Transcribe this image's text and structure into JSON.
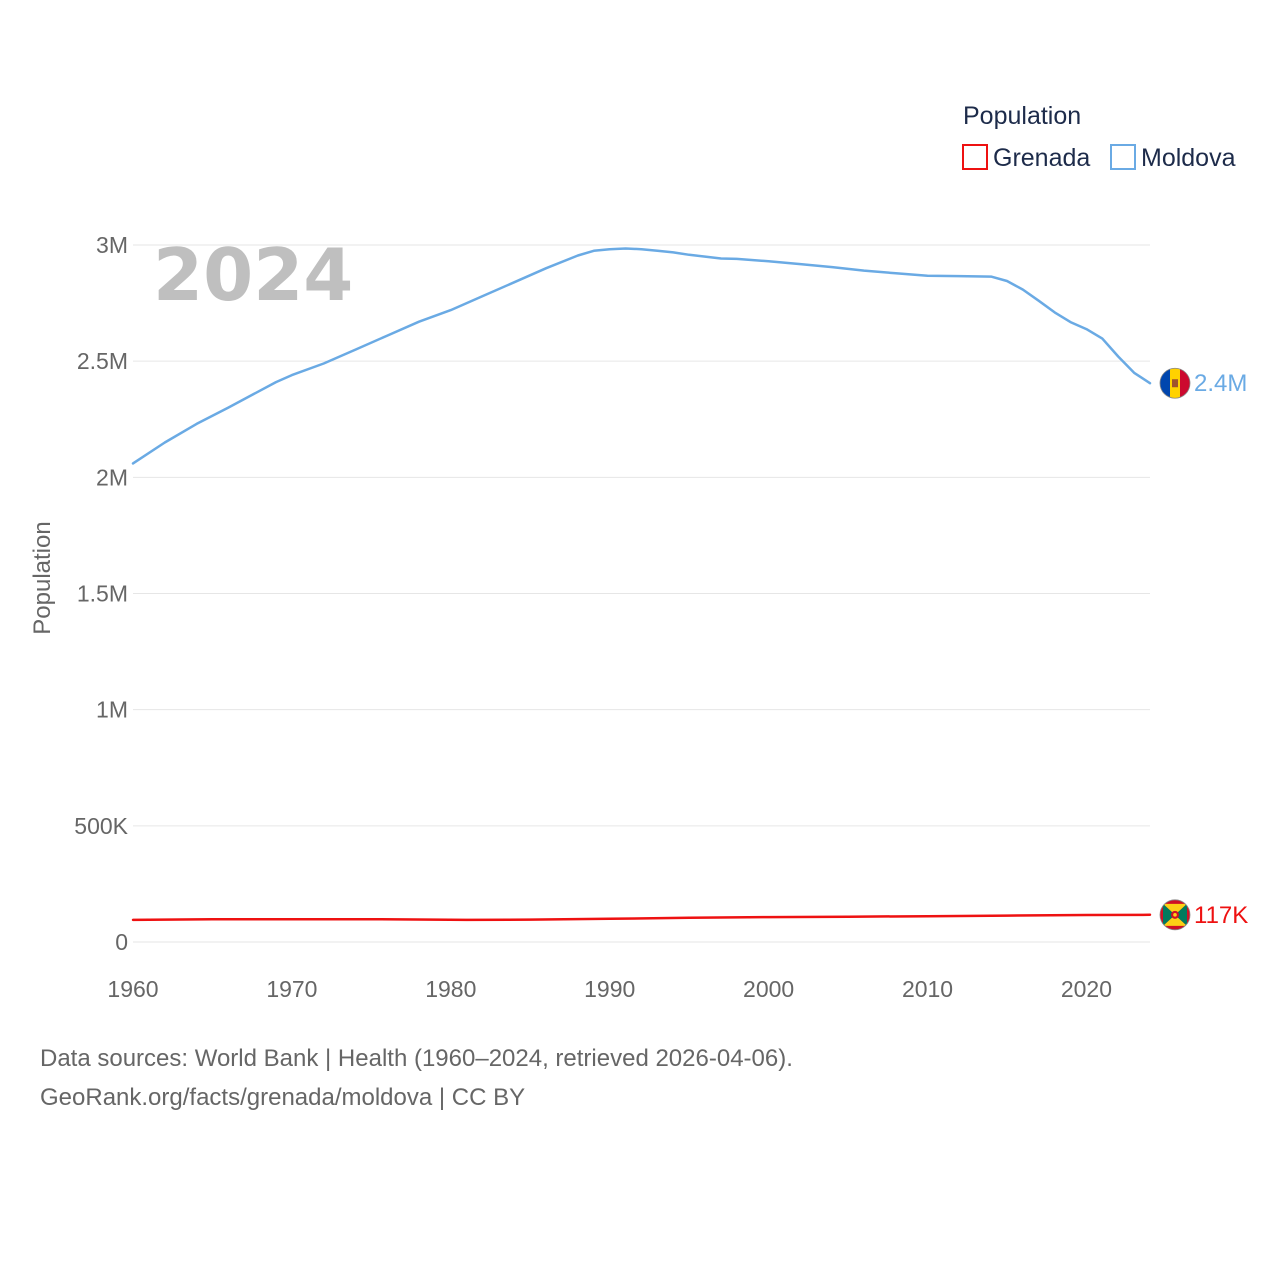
{
  "chart_data": {
    "type": "line",
    "title": "Population",
    "ylabel": "Population",
    "xlabel": "",
    "year_label": "2024",
    "xlim": [
      1960,
      2024
    ],
    "ylim": [
      0,
      3000000
    ],
    "x_ticks": [
      1960,
      1970,
      1980,
      1990,
      2000,
      2010,
      2020
    ],
    "x_tick_labels": [
      "1960",
      "1970",
      "1980",
      "1990",
      "2000",
      "2010",
      "2020"
    ],
    "y_ticks": [
      0,
      500000,
      1000000,
      1500000,
      2000000,
      2500000,
      3000000
    ],
    "y_tick_labels": [
      "0",
      "500K",
      "1M",
      "1.5M",
      "2M",
      "2.5M",
      "3M"
    ],
    "grid": true,
    "legend": {
      "title": "Population",
      "position": "top-right"
    },
    "series": [
      {
        "name": "Grenada",
        "color": "#ee1111",
        "end_label": "117K",
        "flag": "grenada-flag-icon",
        "x": [
          1960,
          1965,
          1970,
          1975,
          1981,
          1985,
          1990,
          1995,
          2000,
          2005,
          2010,
          2015,
          2020,
          2024
        ],
        "y": [
          95000,
          97500,
          98000,
          98000,
          95000,
          96500,
          100000,
          104000,
          107000,
          109000,
          111000,
          113500,
          116000,
          117000
        ]
      },
      {
        "name": "Moldova",
        "color": "#6aaae4",
        "end_label": "2.4M",
        "flag": "moldova-flag-icon",
        "x": [
          1960,
          1962,
          1964,
          1966,
          1969,
          1970,
          1972,
          1974,
          1976,
          1978,
          1980,
          1982,
          1984,
          1986,
          1988,
          1989,
          1990,
          1991,
          1992,
          1993,
          1994,
          1995,
          1996,
          1997,
          1998,
          2000,
          2002,
          2004,
          2006,
          2008,
          2010,
          2012,
          2014,
          2015,
          2016,
          2017,
          2018,
          2019,
          2020,
          2021,
          2022,
          2023,
          2024
        ],
        "y": [
          2060000,
          2150000,
          2230000,
          2300000,
          2410000,
          2440000,
          2490000,
          2550000,
          2610000,
          2670000,
          2720000,
          2780000,
          2840000,
          2900000,
          2955000,
          2975000,
          2982000,
          2985000,
          2982000,
          2975000,
          2968000,
          2958000,
          2950000,
          2942000,
          2940000,
          2930000,
          2918000,
          2905000,
          2890000,
          2878000,
          2868000,
          2866000,
          2864000,
          2845000,
          2808000,
          2760000,
          2710000,
          2668000,
          2638000,
          2597000,
          2520000,
          2450000,
          2405000
        ]
      }
    ]
  },
  "footer": {
    "source_line": "Data sources: World Bank | Health (1960–2024, retrieved 2026-04-06).",
    "url_line": "GeoRank.org/facts/grenada/moldova | CC BY"
  }
}
